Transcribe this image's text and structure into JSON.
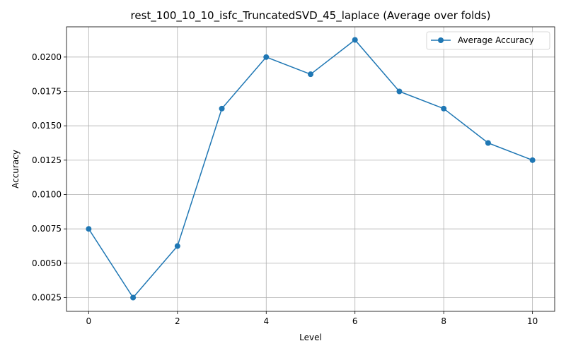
{
  "chart_data": {
    "type": "line",
    "title": "rest_100_10_10_isfc_TruncatedSVD_45_laplace (Average over folds)",
    "xlabel": "Level",
    "ylabel": "Accuracy",
    "xlim": [
      -0.5,
      10.5
    ],
    "ylim": [
      0.0015,
      0.0222
    ],
    "xticks": [
      0,
      2,
      4,
      6,
      8,
      10
    ],
    "xtick_labels": [
      "0",
      "2",
      "4",
      "6",
      "8",
      "10"
    ],
    "yticks": [
      0.0025,
      0.005,
      0.0075,
      0.01,
      0.0125,
      0.015,
      0.0175,
      0.02
    ],
    "ytick_labels": [
      "0.0025",
      "0.0050",
      "0.0075",
      "0.0100",
      "0.0125",
      "0.0150",
      "0.0175",
      "0.0200"
    ],
    "grid": true,
    "legend_position": "top-right",
    "series": [
      {
        "name": "Average Accuracy",
        "color": "#1f77b4",
        "marker": "circle",
        "x": [
          0,
          1,
          2,
          3,
          4,
          5,
          6,
          7,
          8,
          9,
          10
        ],
        "y": [
          0.0075,
          0.0025,
          0.00625,
          0.01625,
          0.02,
          0.01875,
          0.02125,
          0.0175,
          0.01625,
          0.01375,
          0.0125
        ]
      }
    ]
  }
}
